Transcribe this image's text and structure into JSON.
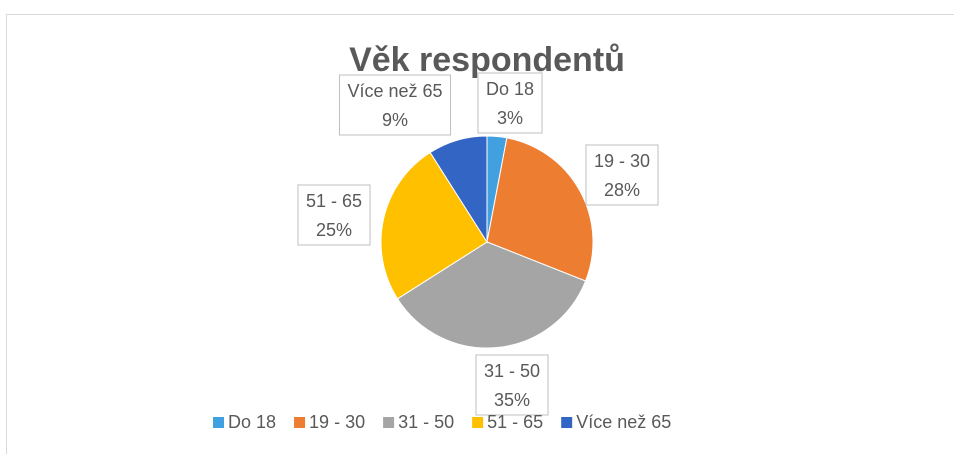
{
  "chart_data": {
    "type": "pie",
    "title": "Věk respondentů",
    "categories": [
      "Do 18",
      "19 - 30",
      "31 - 50",
      "51 - 65",
      "Více než 65"
    ],
    "values": [
      3,
      28,
      35,
      25,
      9
    ],
    "value_labels": [
      "3%",
      "28%",
      "35%",
      "25%",
      "9%"
    ],
    "colors": [
      "#41a0e0",
      "#ed7d31",
      "#a5a5a5",
      "#ffc000",
      "#3366c4"
    ],
    "legend": "bottom"
  }
}
